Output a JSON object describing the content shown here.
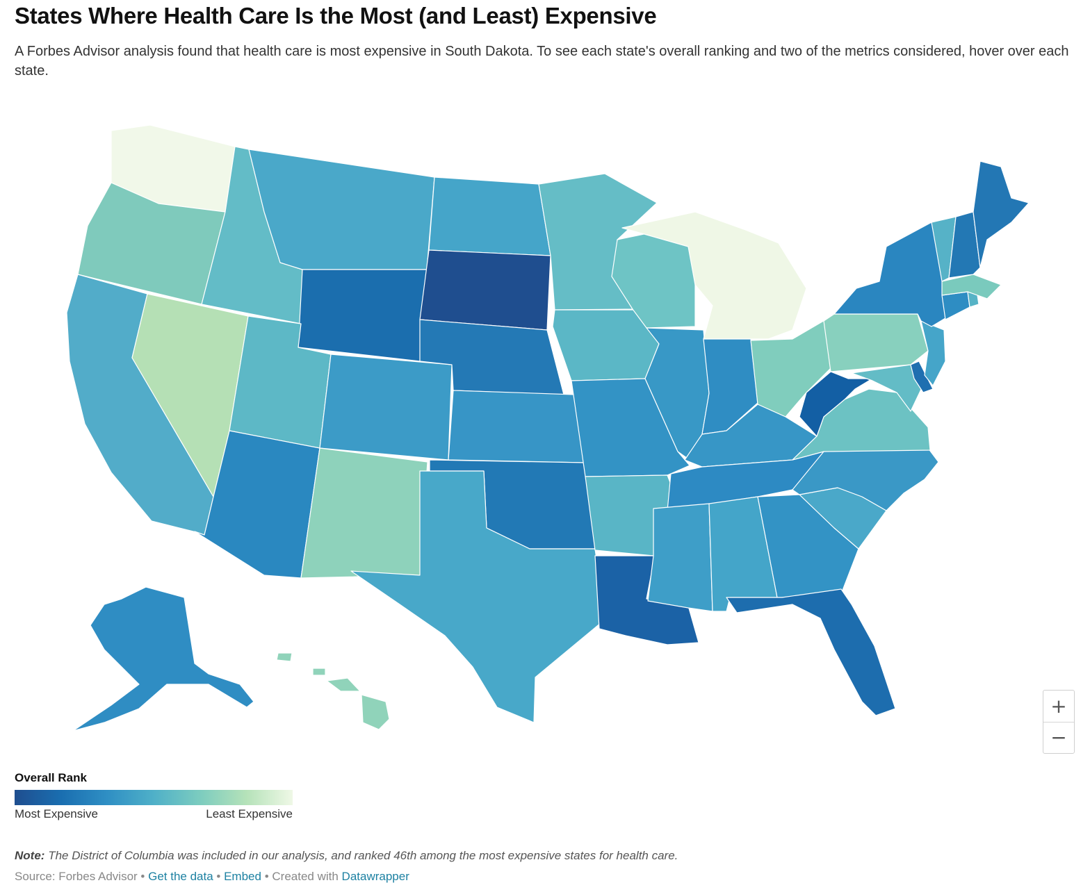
{
  "header": {
    "title": "States Where Health Care Is the Most (and Least) Expensive",
    "subtitle": "A Forbes Advisor analysis found that health care is most expensive in South Dakota. To see each state's overall ranking and two of the metrics considered, hover over each state."
  },
  "legend": {
    "title": "Overall Rank",
    "low_label": "Most Expensive",
    "high_label": "Least Expensive",
    "gradient": [
      "#1f4e8f",
      "#1a6eb0",
      "#2f8fc4",
      "#4fb0c8",
      "#7cccbf",
      "#b5e2b9",
      "#eff8e6"
    ]
  },
  "map": {
    "colors": {
      "WA": "#f1f8e9",
      "OR": "#7fcabc",
      "CA": "#52acc9",
      "NV": "#b5e0b5",
      "ID": "#63bcc7",
      "MT": "#4aa8c9",
      "WY": "#1b6eae",
      "UT": "#5db8c6",
      "AZ": "#2a88c0",
      "CO": "#3c9bc7",
      "NM": "#8ed2bb",
      "ND": "#45a5c9",
      "SD": "#1f4e8f",
      "NE": "#2479b5",
      "KS": "#3795c6",
      "OK": "#2279b5",
      "TX": "#48a8c9",
      "MN": "#65bdc6",
      "IA": "#5bb7c6",
      "MO": "#3393c5",
      "AR": "#59b5c6",
      "LA": "#1b62a6",
      "WI": "#6ec4c5",
      "IL": "#3898c6",
      "MI": "#eff7e6",
      "IN": "#2f8dc3",
      "OH": "#80cdbd",
      "KY": "#3796c6",
      "TN": "#2d8ac3",
      "MS": "#3e9ec8",
      "AL": "#44a5c9",
      "GA": "#3393c5",
      "FL": "#1d6dae",
      "SC": "#4aa8c9",
      "NC": "#3a98c6",
      "VA": "#6cc2c3",
      "WV": "#135fa4",
      "PA": "#88d0be",
      "NY": "#2a86c0",
      "VT": "#56b2c7",
      "NH": "#2378b4",
      "ME": "#2377b4",
      "MA": "#7acabd",
      "CT": "#2e8dc3",
      "RI": "#56b3c6",
      "NJ": "#45a5c9",
      "DE": "#1f6fb0",
      "MD": "#63bcc6",
      "AK": "#2f8dc3",
      "HI": "#90d3ba"
    }
  },
  "zoom": {
    "in_label": "+",
    "out_label": "−"
  },
  "note": {
    "label": "Note:",
    "text": "The District of Columbia was included in our analysis, and ranked 46th among the most expensive states for health care."
  },
  "footer": {
    "source": "Source: Forbes Advisor",
    "sep": " • ",
    "get_data": "Get the data",
    "embed": "Embed",
    "created": "Created with",
    "tool": "Datawrapper"
  }
}
